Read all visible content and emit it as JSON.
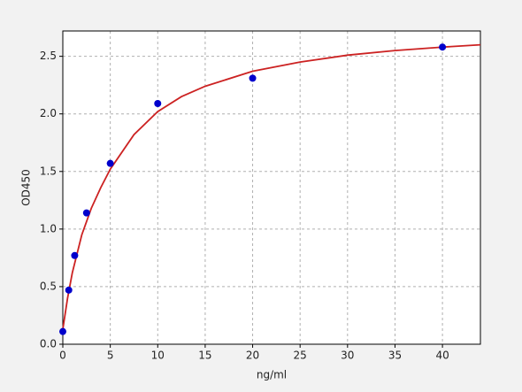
{
  "chart_data": {
    "type": "scatter",
    "x_label": "ng/ml",
    "y_label": "OD450",
    "points": {
      "color": "#0000cc",
      "x": [
        0,
        0.625,
        1.25,
        2.5,
        5,
        10,
        20,
        40
      ],
      "y": [
        0.11,
        0.47,
        0.77,
        1.14,
        1.57,
        2.09,
        2.31,
        2.58
      ]
    },
    "fit": {
      "color": "#cc2222",
      "x": [
        0,
        0.5,
        1,
        2,
        3,
        4,
        5,
        7.5,
        10,
        12.5,
        15,
        20,
        25,
        30,
        35,
        40,
        44
      ],
      "y": [
        0.13,
        0.4,
        0.62,
        0.95,
        1.18,
        1.36,
        1.52,
        1.82,
        2.02,
        2.15,
        2.24,
        2.37,
        2.45,
        2.51,
        2.55,
        2.58,
        2.6
      ]
    },
    "xlim": [
      0,
      44
    ],
    "ylim": [
      0,
      2.72
    ],
    "xticks": [
      0,
      5,
      10,
      15,
      20,
      25,
      30,
      35,
      40
    ],
    "yticks": [
      {
        "value": 0,
        "label": "0.0"
      },
      0.5,
      {
        "value": 1,
        "label": "1.0"
      },
      1.5,
      {
        "value": 2,
        "label": "2.0"
      },
      2.5
    ],
    "grid": true
  }
}
